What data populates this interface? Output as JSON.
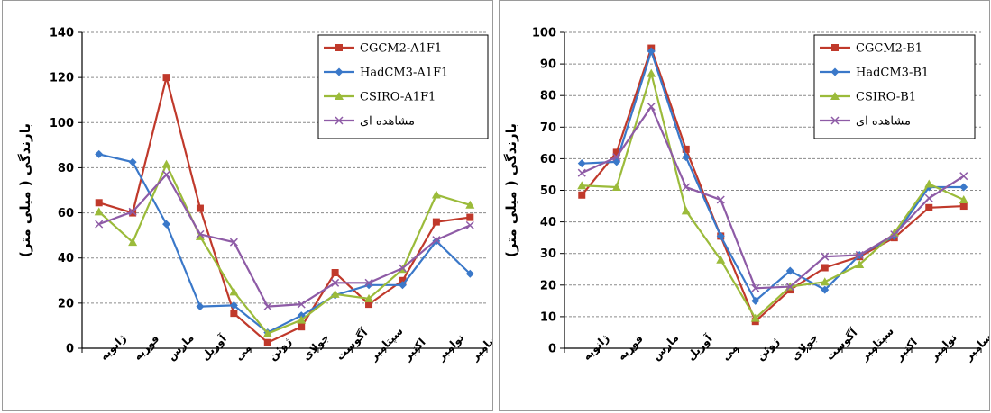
{
  "chart_data": [
    {
      "type": "line",
      "ylabel": "بارندگی ( میلی متر)",
      "ylim": [
        0,
        140
      ],
      "yticks": [
        0,
        20,
        40,
        60,
        80,
        100,
        120,
        140
      ],
      "categories": [
        "ژانویه",
        "فوریه",
        "مارس",
        "آوریل",
        "می",
        "ژوئن",
        "جولای",
        "آگوست",
        "سپتامبر",
        "اکتبر",
        "نوامبر",
        "دسامبر"
      ],
      "legend_position": "top-right",
      "grid": "horizontal dashed",
      "series": [
        {
          "name": "CGCM2-A1F1",
          "color": "#c0392b",
          "marker": "square",
          "values": [
            64.5,
            60,
            120,
            62,
            15.5,
            2.5,
            9.5,
            33.5,
            19.5,
            30,
            56,
            58
          ]
        },
        {
          "name": "HadCM3-A1F1",
          "color": "#3a78c9",
          "marker": "diamond",
          "values": [
            86,
            82.5,
            55,
            18.5,
            19,
            7,
            14.5,
            23.5,
            28,
            28,
            47.5,
            33
          ]
        },
        {
          "name": "CSIRO-A1F1",
          "color": "#9bbb3a",
          "marker": "triangle",
          "values": [
            60.5,
            47,
            81.5,
            49.5,
            25,
            6.5,
            12.5,
            24,
            22,
            35,
            68,
            63.5
          ]
        },
        {
          "name": "مشاهده ای",
          "color": "#8e5ba6",
          "marker": "x",
          "values": [
            55,
            60.5,
            77,
            50.5,
            47,
            18.5,
            19.5,
            29,
            29,
            35.5,
            48,
            54.5
          ]
        }
      ]
    },
    {
      "type": "line",
      "ylabel": "بارندگی ( میلی متر)",
      "ylim": [
        0,
        100
      ],
      "yticks": [
        0,
        10,
        20,
        30,
        40,
        50,
        60,
        70,
        80,
        90,
        100
      ],
      "categories": [
        "ژانویه",
        "فوریه",
        "مارس",
        "آوریل",
        "می",
        "ژوئن",
        "جولای",
        "آگوست",
        "سپتامبر",
        "اکتبر",
        "نوامبر",
        "دسامبر"
      ],
      "legend_position": "top-right",
      "grid": "horizontal dashed",
      "series": [
        {
          "name": "CGCM2-B1",
          "color": "#c0392b",
          "marker": "square",
          "values": [
            48.5,
            62,
            95,
            63,
            35.5,
            8.5,
            18.5,
            25.5,
            29,
            35,
            44.5,
            45
          ]
        },
        {
          "name": "HadCM3-B1",
          "color": "#3a78c9",
          "marker": "diamond",
          "values": [
            58.5,
            59,
            94,
            60.5,
            35.5,
            15,
            24.5,
            18.5,
            29.5,
            35.5,
            51,
            51
          ]
        },
        {
          "name": "CSIRO-B1",
          "color": "#9bbb3a",
          "marker": "triangle",
          "values": [
            51.5,
            51,
            87,
            43.5,
            28,
            9.5,
            19.5,
            21,
            26.5,
            36.5,
            52,
            47
          ]
        },
        {
          "name": "مشاهده ای",
          "color": "#8e5ba6",
          "marker": "x",
          "values": [
            55.5,
            60.5,
            76.5,
            51,
            47,
            19,
            19.5,
            29,
            29.5,
            36,
            47.5,
            54.5
          ]
        }
      ]
    }
  ]
}
